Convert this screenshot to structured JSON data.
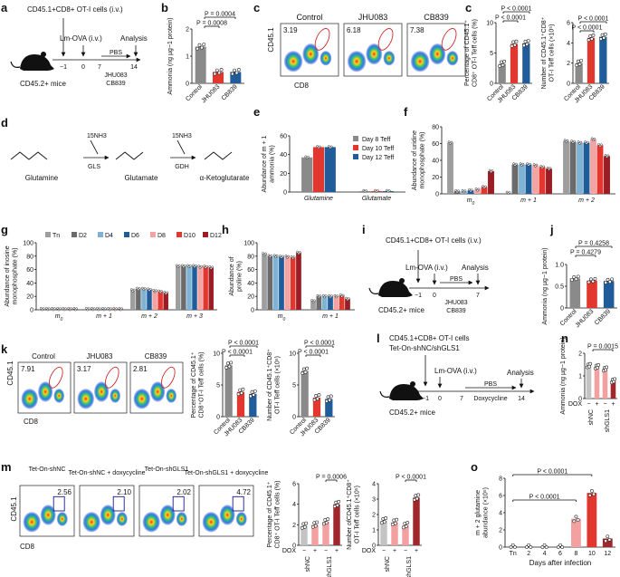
{
  "colors": {
    "gray": "#8a8a8a",
    "red": "#e2372e",
    "blue": "#1f5c99",
    "tn": "#9e9e9e",
    "d2": "#6b6b6b",
    "d4": "#7fb3d5",
    "d6": "#1f5c99",
    "d8": "#f4a3a3",
    "d10": "#e2372e",
    "d12": "#9b1c22",
    "lightgray": "#c4c4c4",
    "pink": "#f2a0a0",
    "darkred": "#a0282c"
  },
  "panels": {
    "a": "a",
    "b": "b",
    "c": "c",
    "d": "d",
    "e": "e",
    "f": "f",
    "g": "g",
    "h": "h",
    "i": "i",
    "j": "j",
    "k": "k",
    "l": "l",
    "m": "m",
    "n": "n",
    "o": "o"
  },
  "schemes": {
    "a": {
      "title": "CD45.1+CD8+ OT-I cells (i.v.)",
      "infection": "Lm-OVA (i.v.)",
      "analysis": "Analysis",
      "pbs": "PBS",
      "drugs": "JHU083 CB839",
      "mice": "CD45.2+ mice",
      "ticks": [
        "−1",
        "0",
        "7",
        "14"
      ]
    },
    "i": {
      "title": "CD45.1+CD8+ OT-I cells (i.v.)",
      "infection": "Lm-OVA (i.v.)",
      "analysis": "Analysis",
      "pbs": "PBS",
      "drugs": "JHU083 CB839",
      "mice": "CD45.2+ mice",
      "ticks": [
        "−1",
        "0",
        "7"
      ]
    },
    "l": {
      "title1": "CD45.1+CD8+ OT-I cells",
      "title2": "Tet-On-shNC/shGLS1",
      "infection": "Lm-OVA (i.v.)",
      "analysis": "Analysis",
      "pbs": "PBS",
      "doxy": "Doxycycline",
      "mice": "CD45.2+ mice",
      "ticks": [
        "−1",
        "0",
        "7",
        "14"
      ]
    }
  },
  "pathway": {
    "nh3a": "15NH3",
    "nh3b": "15NH3",
    "gls": "GLS",
    "gdh": "GDH",
    "names": [
      "Glutamine",
      "Glutamate",
      "α-Ketoglutarate"
    ]
  },
  "flow": {
    "c": {
      "labels": [
        "Control",
        "JHU083",
        "CB839"
      ],
      "values": [
        "3.19",
        "6.18",
        "7.38"
      ],
      "x": "CD8",
      "y": "CD45.1"
    },
    "k": {
      "labels": [
        "Control",
        "JHU083",
        "CB839"
      ],
      "values": [
        "7.91",
        "3.17",
        "2.81"
      ],
      "x": "CD8",
      "y": "CD45.1"
    },
    "m": {
      "labels": [
        "Tet-On-shNC",
        "Tet-On-shNC + doxycycline",
        "Tet-On-shGLS1",
        "Tet-On-shGLS1 + doxycycline"
      ],
      "values": [
        "2.56",
        "2.10",
        "2.02",
        "4.72"
      ],
      "x": "CD8",
      "y": "CD45.1"
    }
  },
  "chart_data": [
    {
      "id": "b",
      "type": "bar",
      "categories": [
        "Control",
        "JHU083",
        "CB839"
      ],
      "values": [
        1.35,
        0.42,
        0.42
      ],
      "ylabel": "Ammonia (ng µg−1 protein)",
      "ylim": [
        0,
        2
      ],
      "ticks": [
        "0",
        "1",
        "2"
      ],
      "p": [
        "P = 0.0004",
        "P = 0.0008"
      ]
    },
    {
      "id": "c1",
      "type": "bar",
      "categories": [
        "Control",
        "JHU083",
        "CB839"
      ],
      "values": [
        3.2,
        6.5,
        6.6
      ],
      "ylabel": "Percentage of CD45.1+ CD8+ OT-I Teff cells",
      "ylim": [
        0,
        10
      ],
      "ticks": [
        "0",
        "5",
        "10"
      ],
      "p": [
        "P < 0.0001",
        "P < 0.0001"
      ]
    },
    {
      "id": "c2",
      "type": "bar",
      "categories": [
        "Control",
        "JHU083",
        "CB839"
      ],
      "values": [
        2.0,
        4.5,
        4.6
      ],
      "ylabel": "Number of CD45.1+CD8+ OT-I Teff cells (×10⁵)",
      "ylim": [
        0,
        6
      ],
      "ticks": [
        "0",
        "2",
        "4",
        "6"
      ],
      "p": [
        "P < 0.0001",
        "P < 0.0001"
      ]
    },
    {
      "id": "e",
      "type": "bar",
      "categories": [
        "Glutamine",
        "Glutamate"
      ],
      "series": [
        {
          "name": "Day 8 Teff",
          "values": [
            37,
            1
          ]
        },
        {
          "name": "Day 10 Teff",
          "values": [
            48,
            1
          ]
        },
        {
          "name": "Day 12 Teff",
          "values": [
            48,
            1
          ]
        }
      ],
      "ylabel": "Abundance of m + 1 ammonia (%)",
      "ylim": [
        0,
        60
      ],
      "ticks": [
        "0",
        "20",
        "40",
        "60"
      ]
    },
    {
      "id": "f",
      "type": "bar",
      "categories": [
        "m0",
        "m + 1",
        "m + 2"
      ],
      "series": [
        {
          "name": "Tn",
          "values": [
            61,
            1,
            63
          ]
        },
        {
          "name": "D2",
          "values": [
            3,
            35,
            62
          ]
        },
        {
          "name": "D4",
          "values": [
            3,
            35,
            61
          ]
        },
        {
          "name": "D6",
          "values": [
            4,
            35,
            61
          ]
        },
        {
          "name": "D8",
          "values": [
            5,
            34,
            65
          ]
        },
        {
          "name": "D10",
          "values": [
            8,
            32,
            58
          ]
        },
        {
          "name": "D12",
          "values": [
            27,
            30,
            45
          ]
        }
      ],
      "ylabel": "Abundance of uridine monophosphate (%)",
      "ylim": [
        0,
        80
      ],
      "ticks": [
        "0",
        "20",
        "40",
        "60",
        "80"
      ]
    },
    {
      "id": "g",
      "type": "bar",
      "categories": [
        "m0",
        "m + 1",
        "m + 2",
        "m + 3"
      ],
      "legend": [
        "Tn",
        "D2",
        "D4",
        "D6",
        "D8",
        "D10",
        "D12"
      ],
      "series": [
        {
          "name": "Tn",
          "values": [
            1,
            1,
            29,
            65
          ]
        },
        {
          "name": "D2",
          "values": [
            1,
            1,
            31,
            65
          ]
        },
        {
          "name": "D4",
          "values": [
            1,
            1,
            31,
            65
          ]
        },
        {
          "name": "D6",
          "values": [
            1,
            1,
            30,
            65
          ]
        },
        {
          "name": "D8",
          "values": [
            1,
            1,
            28,
            64
          ]
        },
        {
          "name": "D10",
          "values": [
            1,
            1,
            27,
            64
          ]
        },
        {
          "name": "D12",
          "values": [
            1,
            1,
            25,
            63
          ]
        }
      ],
      "ylabel": "Abundance of inosine monophosphate (%)",
      "ylim": [
        0,
        100
      ],
      "ticks": [
        "0",
        "20",
        "40",
        "60",
        "80",
        "100"
      ]
    },
    {
      "id": "h",
      "type": "bar",
      "categories": [
        "m0",
        "m + 1"
      ],
      "series": [
        {
          "name": "Tn",
          "values": [
            83,
            13
          ]
        },
        {
          "name": "D2",
          "values": [
            80,
            20
          ]
        },
        {
          "name": "D4",
          "values": [
            80,
            20
          ]
        },
        {
          "name": "D6",
          "values": [
            79,
            20
          ]
        },
        {
          "name": "D8",
          "values": [
            79,
            20
          ]
        },
        {
          "name": "D10",
          "values": [
            78,
            21
          ]
        },
        {
          "name": "D12",
          "values": [
            85,
            16
          ]
        }
      ],
      "ylabel": "Abundance of proline (%)",
      "ylim": [
        0,
        100
      ],
      "ticks": [
        "0",
        "20",
        "40",
        "60",
        "80",
        "100"
      ]
    },
    {
      "id": "j",
      "type": "bar",
      "categories": [
        "Control",
        "JHU083",
        "CB839"
      ],
      "values": [
        0.68,
        0.63,
        0.62
      ],
      "ylabel": "Ammonia (ng µg−1 protein)",
      "ylim": [
        0,
        1
      ],
      "ticks": [
        "0",
        "0.5",
        "1.0"
      ],
      "p": [
        "P = 0.4258",
        "P = 0.4279"
      ]
    },
    {
      "id": "k1",
      "type": "bar",
      "categories": [
        "Control",
        "JHU083",
        "CB839"
      ],
      "values": [
        8.1,
        3.9,
        3.6
      ],
      "ylabel": "Percentage of CD45.1+ CD8+OT-I Teff cells",
      "ylim": [
        0,
        10
      ],
      "ticks": [
        "0",
        "5",
        "10"
      ],
      "p": [
        "P < 0.0001",
        "P < 0.0001"
      ]
    },
    {
      "id": "k2",
      "type": "bar",
      "categories": [
        "Control",
        "JHU083",
        "CB839"
      ],
      "values": [
        7.2,
        3.0,
        2.8
      ],
      "ylabel": "Number of CD45.1+CD8+ OT-I Teff cells (×10⁵)",
      "ylim": [
        0,
        10
      ],
      "ticks": [
        "0",
        "5",
        "10"
      ],
      "p": [
        "P < 0.0001",
        "P < 0.0001"
      ]
    },
    {
      "id": "m1",
      "type": "bar",
      "categories": [
        "shNC",
        "shNC",
        "shGLS1",
        "shGLS1"
      ],
      "values": [
        1.9,
        2.0,
        2.3,
        4.0
      ],
      "ylabel": "Percentage of CD45.1+ CD8+ OT-I Teff cells",
      "ylim": [
        0,
        6
      ],
      "ticks": [
        "0",
        "2",
        "4",
        "6"
      ],
      "dox": [
        "DOX",
        "−",
        "+",
        "−",
        "+"
      ],
      "groups": [
        "shNC",
        "shGLS1"
      ],
      "p": [
        "P = 0.0006"
      ]
    },
    {
      "id": "m2",
      "type": "bar",
      "categories": [
        "shNC",
        "shNC",
        "shGLS1",
        "shGLS1"
      ],
      "values": [
        1.6,
        1.5,
        1.3,
        3.1
      ],
      "ylabel": "Number ofCD45.1+CD8+ OT-I Teff cells (×10⁵)",
      "ylim": [
        0,
        4
      ],
      "ticks": [
        "0",
        "1",
        "2",
        "3",
        "4"
      ],
      "dox": [
        "DOX",
        "−",
        "+",
        "−",
        "+"
      ],
      "groups": [
        "shNC",
        "shGLS1"
      ],
      "p": [
        "P < 0.0001"
      ]
    },
    {
      "id": "n",
      "type": "bar",
      "categories": [
        "shNC",
        "shNC",
        "shGLS1",
        "shGLS1"
      ],
      "values": [
        1.45,
        1.4,
        1.3,
        0.78
      ],
      "ylabel": "Ammonia (ng µg−1 protein)",
      "ylim": [
        0,
        2
      ],
      "ticks": [
        "0",
        "1",
        "2"
      ],
      "dox": [
        "DOX",
        "−",
        "+",
        "−",
        "+"
      ],
      "groups": [
        "shNC",
        "shGLS1"
      ],
      "p": [
        "P = 0.0015"
      ]
    },
    {
      "id": "o",
      "type": "bar",
      "categories": [
        "Tn",
        "2",
        "4",
        "6",
        "8",
        "10",
        "12"
      ],
      "values": [
        0,
        0,
        0,
        0,
        3.3,
        6.3,
        1.0
      ],
      "ylabel": "m + 2 glutamine abundance (×10⁵)",
      "xlabel": "Days after infection",
      "ylim": [
        0,
        8
      ],
      "ticks": [
        "0",
        "2",
        "4",
        "6",
        "8"
      ],
      "p": [
        "P < 0.0001",
        "P < 0.0001"
      ]
    }
  ]
}
